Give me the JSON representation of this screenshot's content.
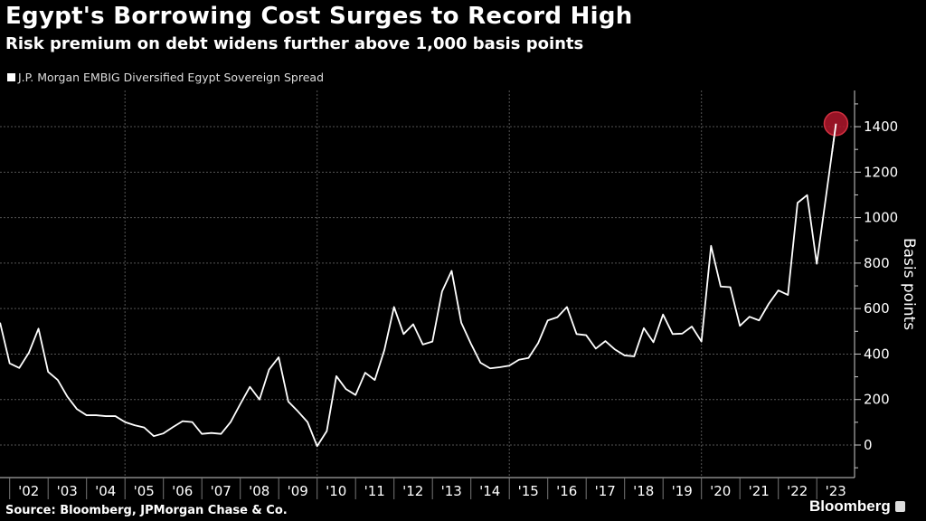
{
  "chart_data": {
    "type": "line",
    "title": "Egypt's Borrowing Cost Surges to Record High",
    "subtitle": "Risk premium on debt widens further above 1,000 basis points",
    "ylabel": "Basis points",
    "xlabel": "",
    "ylim": [
      -140,
      1560
    ],
    "xlim": [
      2001.75,
      2024.0
    ],
    "y_ticks": [
      0,
      200,
      400,
      600,
      800,
      1000,
      1200,
      1400
    ],
    "x_tick_labels": [
      "'02",
      "'03",
      "'04",
      "'05",
      "'06",
      "'07",
      "'08",
      "'09",
      "'10",
      "'11",
      "'12",
      "'13",
      "'14",
      "'15",
      "'16",
      "'17",
      "'18",
      "'19",
      "'20",
      "'21",
      "'22",
      "'23"
    ],
    "x_tick_years": [
      2002,
      2003,
      2004,
      2005,
      2006,
      2007,
      2008,
      2009,
      2010,
      2011,
      2012,
      2013,
      2014,
      2015,
      2016,
      2017,
      2018,
      2019,
      2020,
      2021,
      2022,
      2023
    ],
    "grid": true,
    "legend_position": "top-left",
    "series": [
      {
        "name": "J.P. Morgan EMBIG Diversified Egypt Sovereign Spread",
        "color": "#ffffff",
        "x_start": 2001.75,
        "x_step": 0.25,
        "values": [
          538,
          359,
          339,
          406,
          512,
          322,
          286,
          213,
          158,
          131,
          131,
          127,
          127,
          101,
          87,
          77,
          39,
          51,
          79,
          105,
          101,
          49,
          53,
          49,
          101,
          180,
          256,
          200,
          332,
          386,
          191,
          148,
          101,
          -5,
          61,
          303,
          246,
          220,
          318,
          286,
          418,
          607,
          488,
          531,
          442,
          455,
          675,
          766,
          538,
          446,
          362,
          337,
          342,
          349,
          375,
          383,
          448,
          548,
          562,
          607,
          488,
          483,
          424,
          457,
          420,
          394,
          390,
          514,
          452,
          574,
          488,
          490,
          521,
          455,
          876,
          697,
          694,
          524,
          564,
          548,
          621,
          680,
          660,
          1065,
          1099,
          797,
          1105,
          1413
        ]
      }
    ],
    "highlight": {
      "label": "latest",
      "color": "#b0162b"
    }
  },
  "source": "Source: Bloomberg, JPMorgan Chase & Co.",
  "brand": "Bloomberg"
}
